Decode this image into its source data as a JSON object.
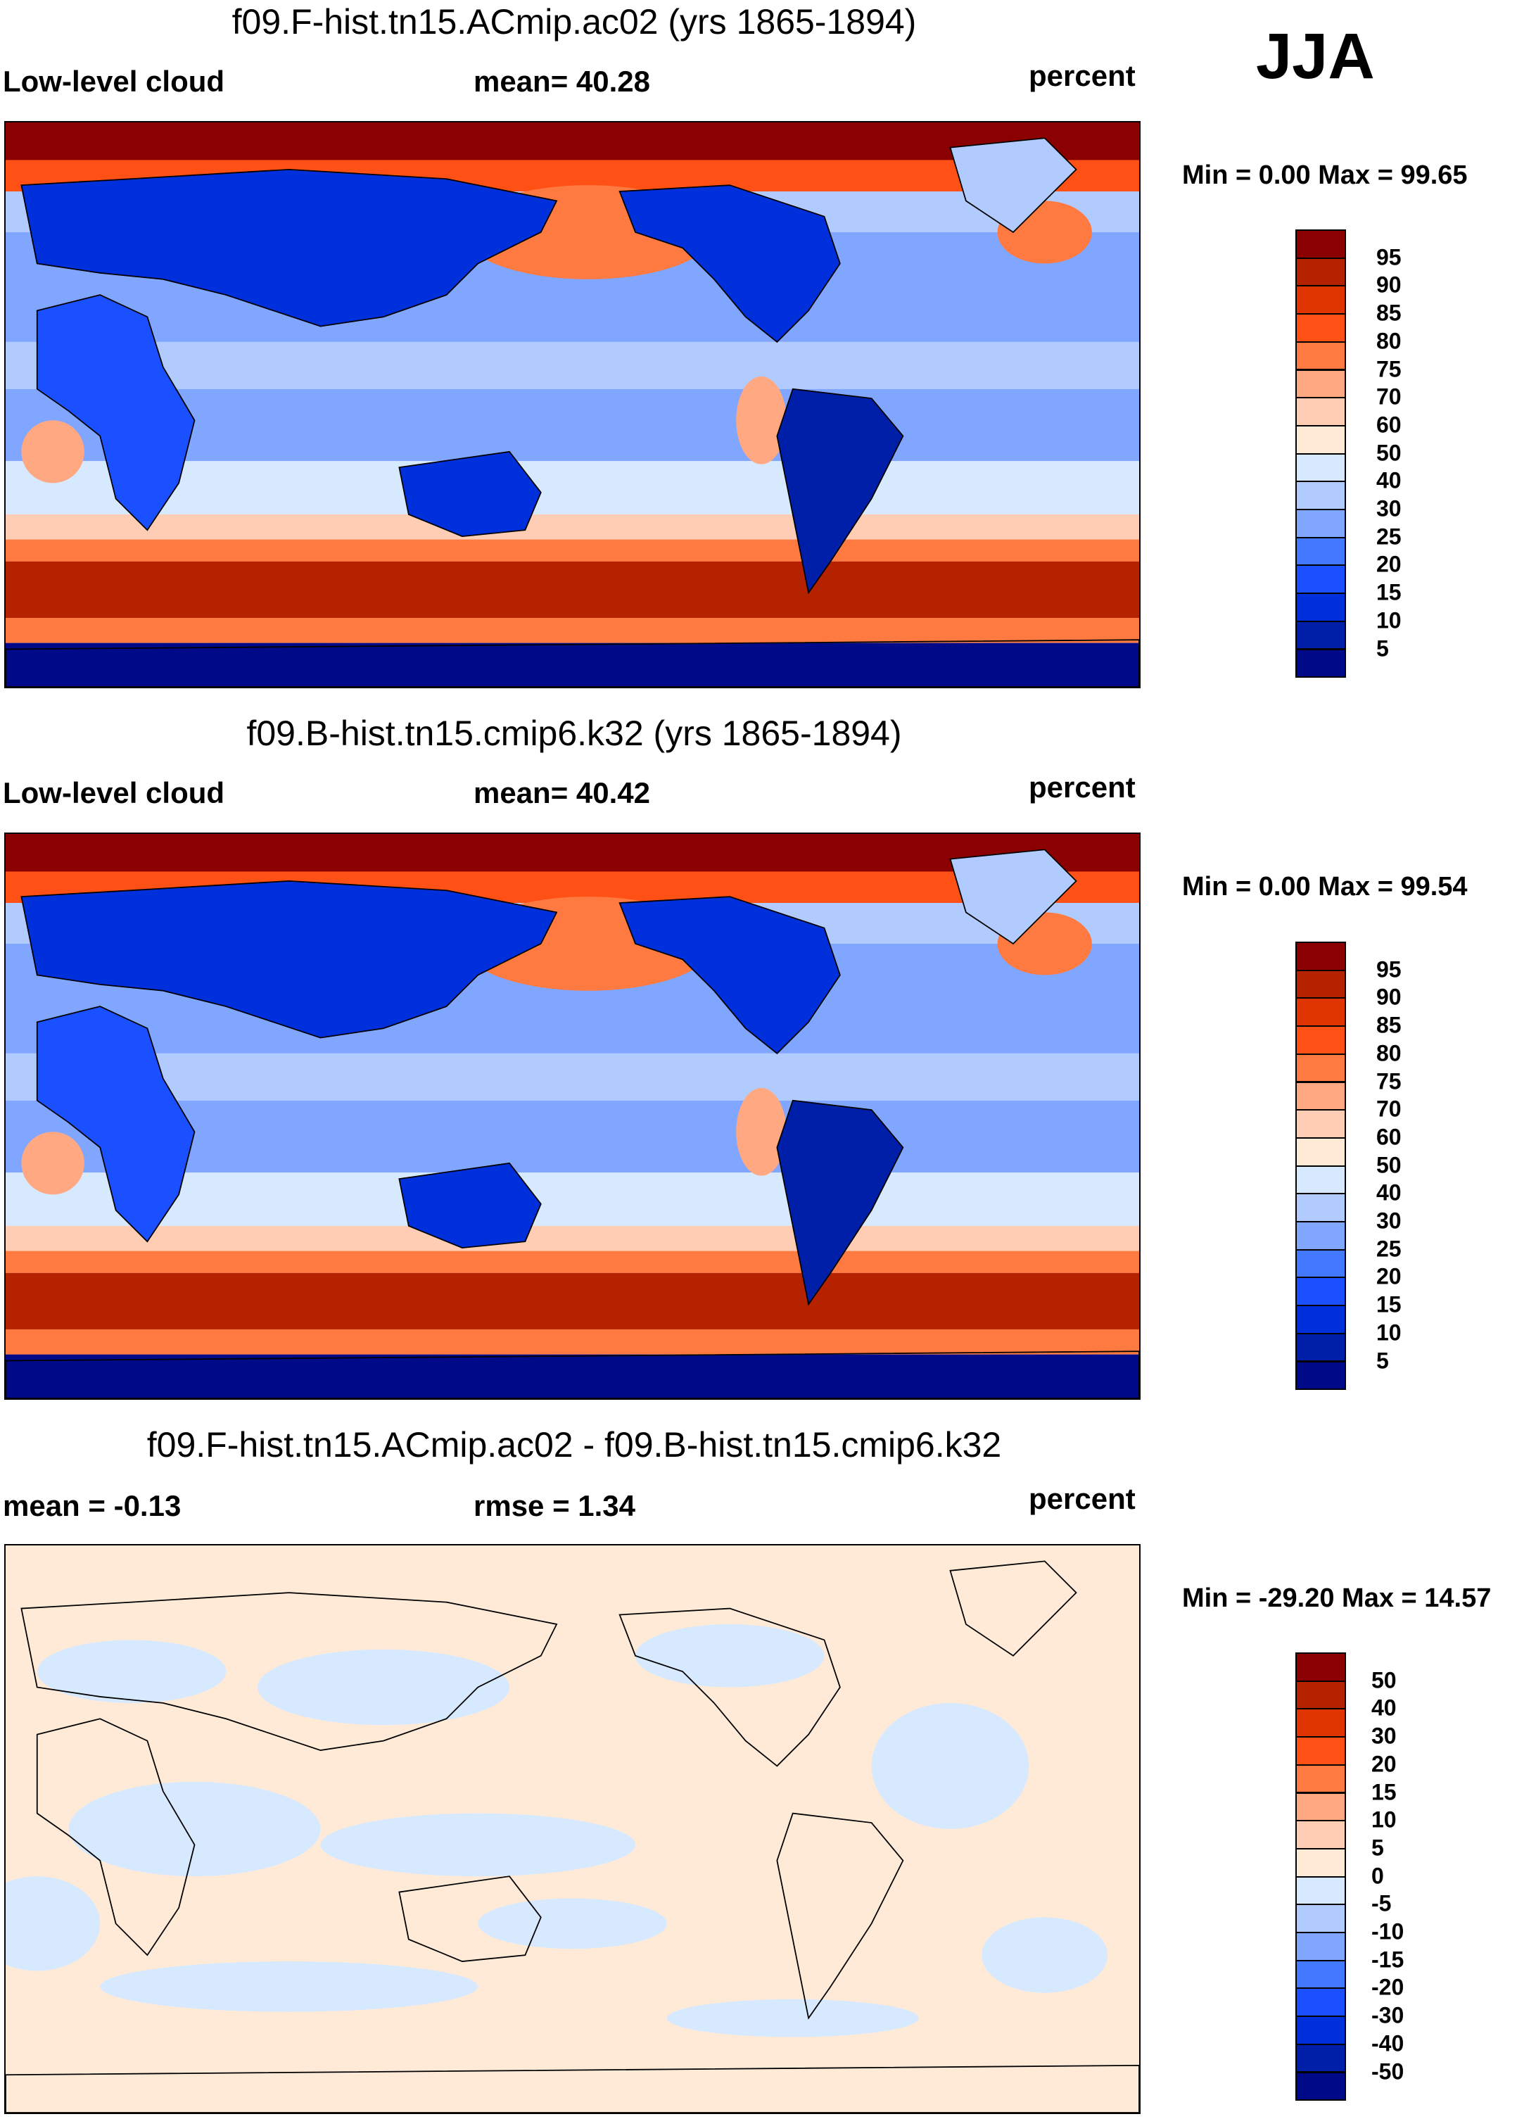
{
  "season": "JJA",
  "colors": {
    "levels_palette": [
      "#8b0000",
      "#b42200",
      "#e03500",
      "#ff5016",
      "#ff7a40",
      "#ffa882",
      "#ffcdb4",
      "#ffead8",
      "#d6e9ff",
      "#b2cbff",
      "#80a6ff",
      "#4279ff",
      "#1a50ff",
      "#002fdc",
      "#001fa8",
      "#000a88"
    ]
  },
  "panels": [
    {
      "title": "f09.F-hist.tn15.ACmip.ac02 (yrs 1865-1894)",
      "left_label": "Low-level cloud",
      "center_label": "mean=  40.28",
      "right_label": "percent",
      "minmax": "Min =   0.00 Max =  99.65"
    },
    {
      "title": "f09.B-hist.tn15.cmip6.k32 (yrs 1865-1894)",
      "left_label": "Low-level cloud",
      "center_label": "mean=  40.42",
      "right_label": "percent",
      "minmax": "Min =   0.00 Max =  99.54"
    },
    {
      "title": "f09.F-hist.tn15.ACmip.ac02 - f09.B-hist.tn15.cmip6.k32",
      "left_label": "mean =  -0.13",
      "center_label": "rmse =   1.34",
      "right_label": "percent",
      "minmax": "Min = -29.20 Max =  14.57"
    }
  ],
  "chart_data": [
    {
      "type": "heatmap",
      "title": "f09.F-hist.tn15.ACmip.ac02 (yrs 1865-1894)",
      "variable": "Low-level cloud",
      "units": "percent",
      "mean": 40.28,
      "min": 0.0,
      "max": 99.65,
      "colorbar_levels": [
        "95",
        "90",
        "85",
        "80",
        "75",
        "70",
        "60",
        "50",
        "40",
        "30",
        "25",
        "20",
        "15",
        "10",
        "5"
      ]
    },
    {
      "type": "heatmap",
      "title": "f09.B-hist.tn15.cmip6.k32 (yrs 1865-1894)",
      "variable": "Low-level cloud",
      "units": "percent",
      "mean": 40.42,
      "min": 0.0,
      "max": 99.54,
      "colorbar_levels": [
        "95",
        "90",
        "85",
        "80",
        "75",
        "70",
        "60",
        "50",
        "40",
        "30",
        "25",
        "20",
        "15",
        "10",
        "5"
      ]
    },
    {
      "type": "heatmap",
      "title": "f09.F-hist.tn15.ACmip.ac02 - f09.B-hist.tn15.cmip6.k32",
      "units": "percent",
      "mean": -0.13,
      "rmse": 1.34,
      "min": -29.2,
      "max": 14.57,
      "colorbar_levels": [
        "50",
        "40",
        "30",
        "20",
        "15",
        "10",
        "5",
        "0",
        "-5",
        "-10",
        "-15",
        "-20",
        "-30",
        "-40",
        "-50"
      ]
    }
  ]
}
